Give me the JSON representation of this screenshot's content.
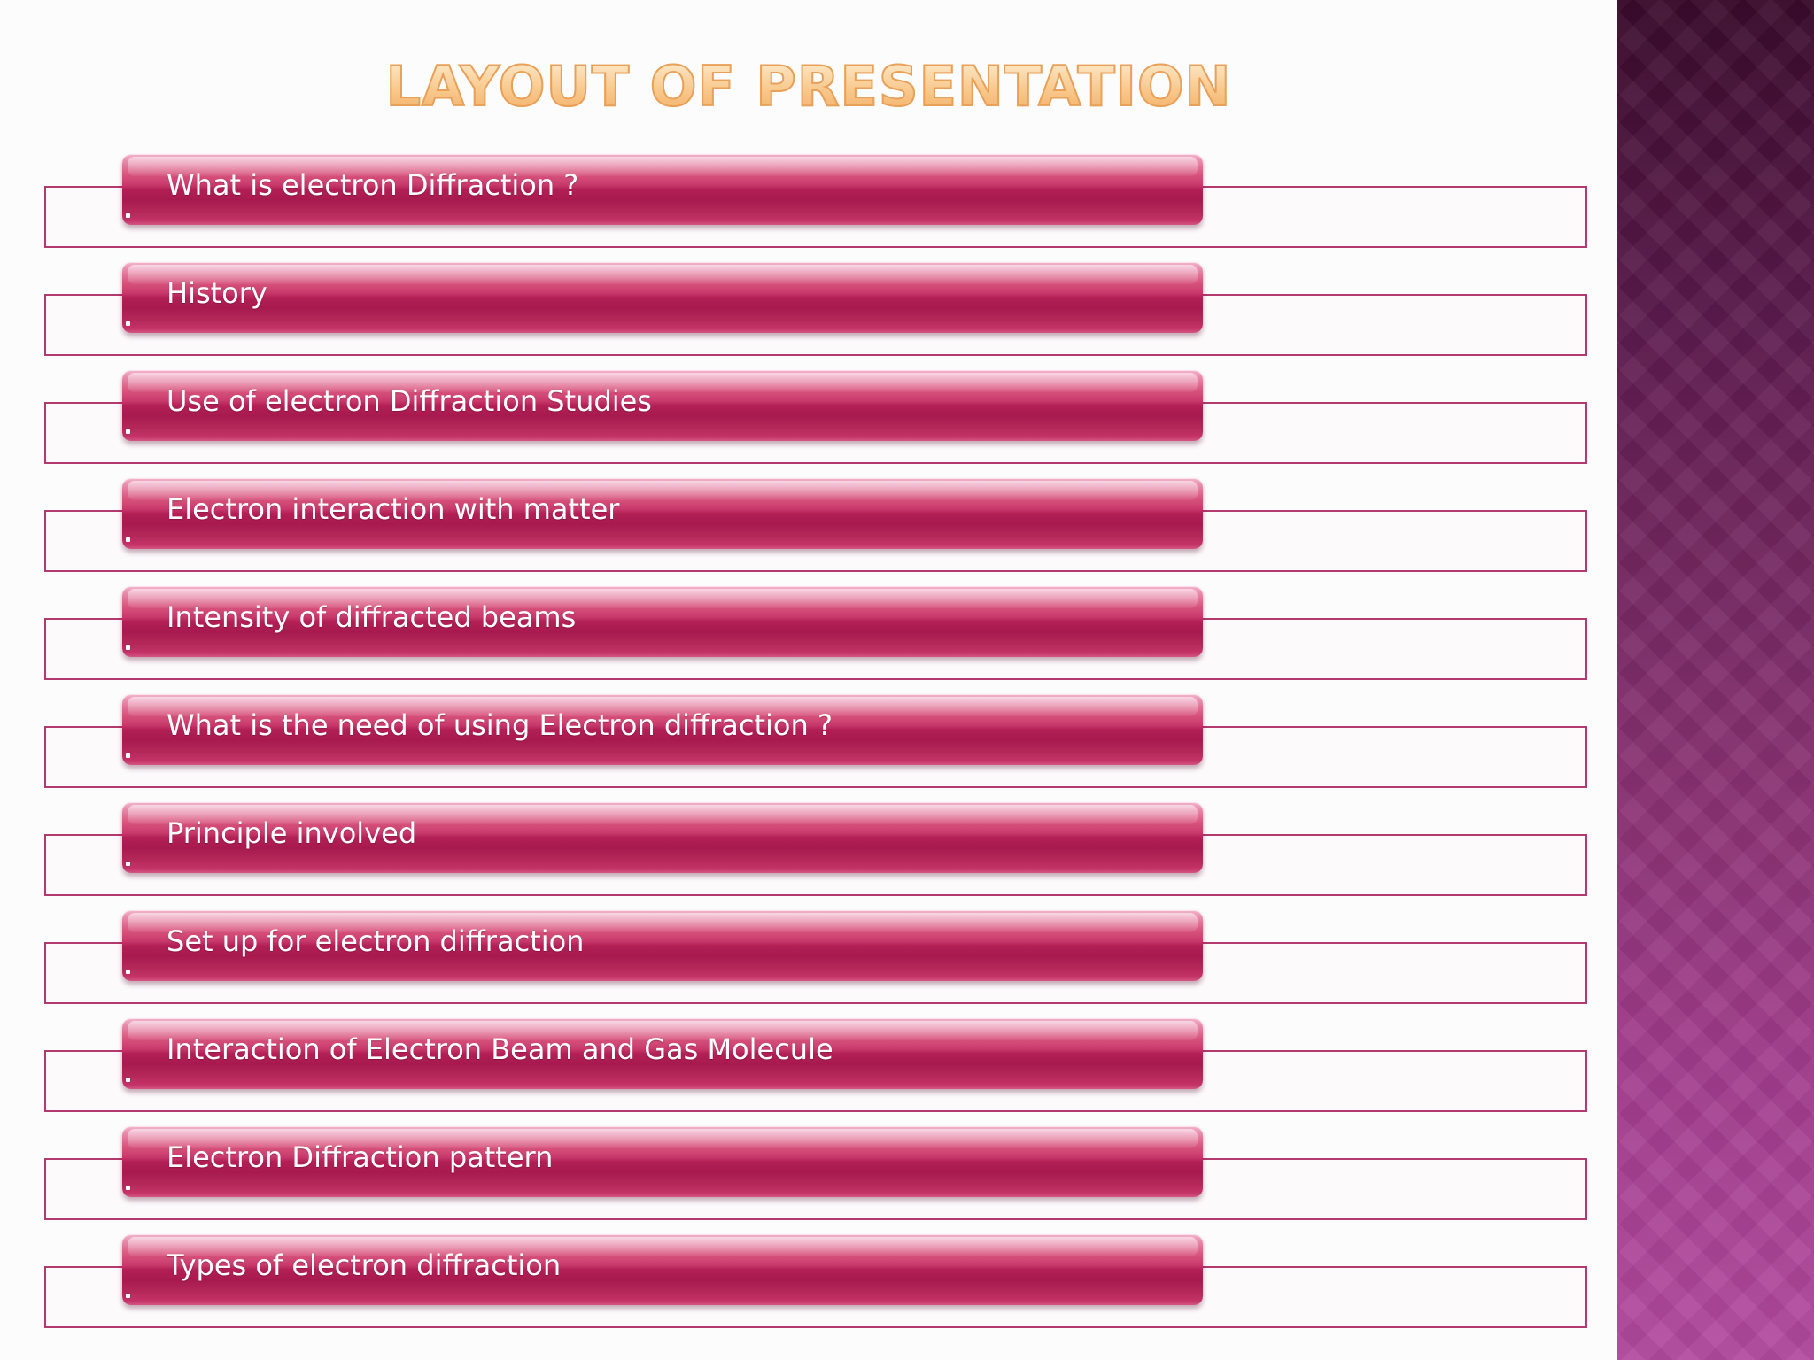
{
  "slide": {
    "title": "LAYOUT OF PRESENTATION",
    "items": [
      {
        "label": "What is electron Diffraction ?"
      },
      {
        "label": "History"
      },
      {
        "label": "Use of electron Diffraction Studies"
      },
      {
        "label": "Electron interaction with matter"
      },
      {
        "label": "Intensity of diffracted beams"
      },
      {
        "label": "What is the need of using Electron diffraction ?"
      },
      {
        "label": "Principle involved"
      },
      {
        "label": "Set up for electron diffraction"
      },
      {
        "label": "Interaction of Electron Beam and Gas Molecule"
      },
      {
        "label": "Electron Diffraction pattern"
      },
      {
        "label": "Types of electron diffraction"
      }
    ]
  },
  "colors": {
    "bar": "#b21f55",
    "frame_line": "#b23a6e",
    "title": "#f2a85a",
    "side_panel_top": "#3a0a2c",
    "side_panel_bottom": "#b24a9e"
  }
}
